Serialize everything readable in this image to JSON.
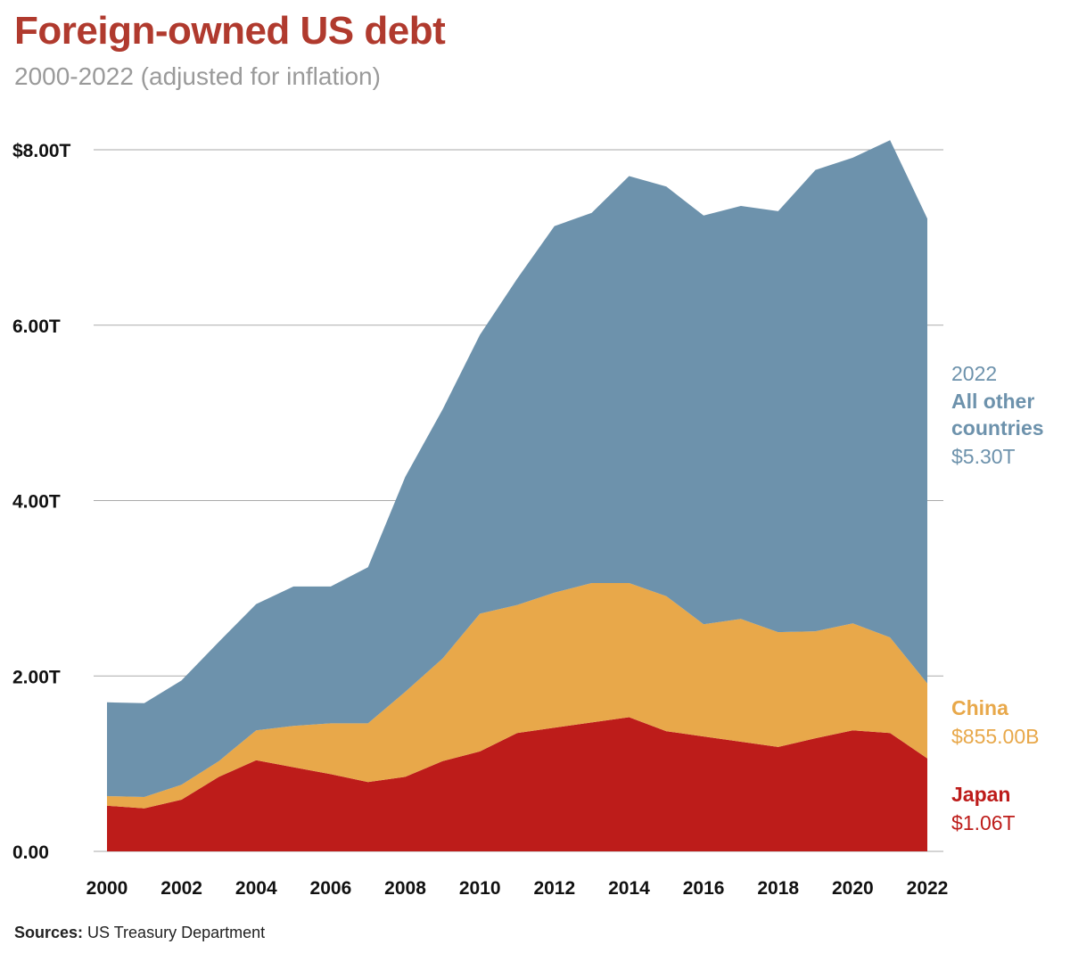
{
  "header": {
    "title": "Foreign-owned US debt",
    "subtitle": "2000-2022 (adjusted for inflation)"
  },
  "footer": {
    "source_label": "Sources:",
    "source_text": "US Treasury Department"
  },
  "colors": {
    "japan": "#bd1c1a",
    "china": "#e8a84a",
    "other": "#6d92ac",
    "title": "#b03a2e",
    "grid": "#aaaaaa"
  },
  "chart_data": {
    "type": "area",
    "stacked": true,
    "x": [
      2000,
      2001,
      2002,
      2003,
      2004,
      2005,
      2006,
      2007,
      2008,
      2009,
      2010,
      2011,
      2012,
      2013,
      2014,
      2015,
      2016,
      2017,
      2018,
      2019,
      2020,
      2021,
      2022
    ],
    "series": [
      {
        "name": "Japan",
        "color": "#bd1c1a",
        "values": [
          0.52,
          0.49,
          0.59,
          0.85,
          1.04,
          0.96,
          0.88,
          0.79,
          0.85,
          1.03,
          1.14,
          1.35,
          1.41,
          1.47,
          1.53,
          1.37,
          1.31,
          1.25,
          1.19,
          1.29,
          1.38,
          1.35,
          1.06
        ]
      },
      {
        "name": "China",
        "color": "#e8a84a",
        "values": [
          0.11,
          0.13,
          0.17,
          0.18,
          0.34,
          0.47,
          0.58,
          0.67,
          0.97,
          1.17,
          1.57,
          1.46,
          1.54,
          1.59,
          1.53,
          1.54,
          1.28,
          1.4,
          1.31,
          1.22,
          1.22,
          1.09,
          0.855
        ]
      },
      {
        "name": "All other countries",
        "color": "#6d92ac",
        "values": [
          1.07,
          1.07,
          1.19,
          1.36,
          1.44,
          1.59,
          1.56,
          1.78,
          2.45,
          2.84,
          3.18,
          3.72,
          4.18,
          4.22,
          4.64,
          4.67,
          4.66,
          4.71,
          4.8,
          5.26,
          5.31,
          5.67,
          5.3
        ]
      }
    ],
    "y_ticks": [
      {
        "value": 0,
        "label": "0.00"
      },
      {
        "value": 2,
        "label": "2.00T"
      },
      {
        "value": 4,
        "label": "4.00T"
      },
      {
        "value": 6,
        "label": "6.00T"
      },
      {
        "value": 8,
        "label": "$8.00T"
      }
    ],
    "x_ticks": [
      2000,
      2002,
      2004,
      2006,
      2008,
      2010,
      2012,
      2014,
      2016,
      2018,
      2020,
      2022
    ],
    "ylim": [
      0,
      8
    ],
    "xlim": [
      2000,
      2022
    ],
    "ylabel_units": "trillions USD",
    "grid": true,
    "annotations": [
      {
        "series": "All other countries",
        "year_label": "2022",
        "name_lines": [
          "All other",
          "countries"
        ],
        "value_label": "$5.30T",
        "color": "#6d92ac"
      },
      {
        "series": "China",
        "name_lines": [
          "China"
        ],
        "value_label": "$855.00B",
        "color": "#e8a84a"
      },
      {
        "series": "Japan",
        "name_lines": [
          "Japan"
        ],
        "value_label": "$1.06T",
        "color": "#bd1c1a"
      }
    ]
  }
}
